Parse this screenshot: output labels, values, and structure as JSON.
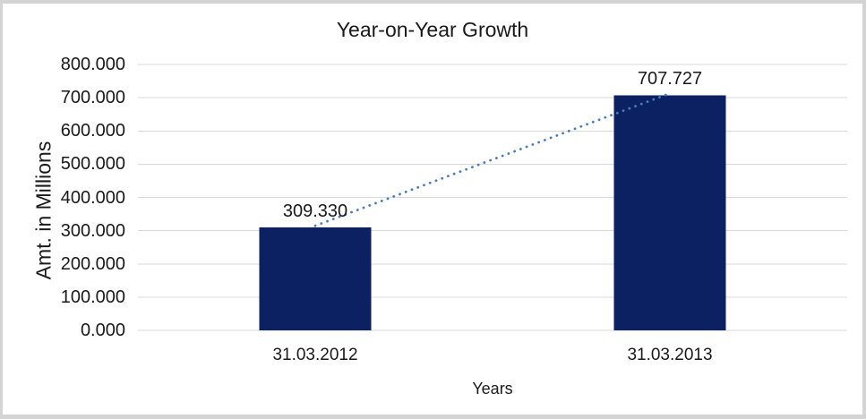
{
  "chart_data": {
    "type": "bar",
    "title": "Year-on-Year Growth",
    "xlabel": "Years",
    "ylabel": "Amt. in Millions",
    "categories": [
      "31.03.2012",
      "31.03.2013"
    ],
    "series": [
      {
        "name": "Amt. in Millions",
        "values": [
          309.33,
          707.727
        ],
        "value_labels": [
          "309.330",
          "707.727"
        ]
      }
    ],
    "ylim": [
      0,
      800
    ],
    "ytick_step": 100,
    "ytick_labels": [
      "0.000",
      "100.000",
      "200.000",
      "300.000",
      "400.000",
      "500.000",
      "600.000",
      "700.000",
      "800.000"
    ],
    "grid": "horizontal-only",
    "legend": "none",
    "trendline": {
      "type": "linear",
      "style": "dotted",
      "connects": [
        "31.03.2012",
        "31.03.2013"
      ]
    },
    "colors": {
      "bar": "#0b2161",
      "trendline": "#4a7cbf",
      "gridline": "#d9d9d9",
      "text": "#1a1a1a",
      "frame_border": "#d4d4d4",
      "background": "#ffffff"
    }
  }
}
